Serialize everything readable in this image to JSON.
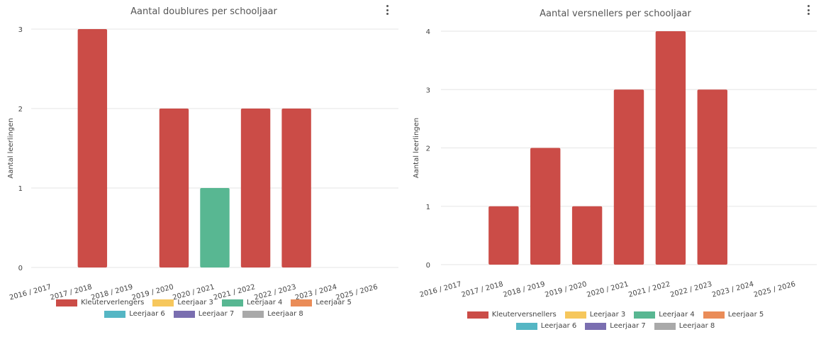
{
  "chart_data": [
    {
      "type": "bar",
      "title": "Aantal doublures per schooljaar",
      "ylabel": "Aantal leerlingen",
      "xlabel": "",
      "ylim": [
        0,
        3
      ],
      "yticks": [
        "0",
        "1",
        "2",
        "3"
      ],
      "categories": [
        "2016 / 2017",
        "2017 / 2018",
        "2018 / 2019",
        "2019 / 2020",
        "2020 / 2021",
        "2021 / 2022",
        "2022 / 2023",
        "2023 / 2024",
        "2025 / 2026"
      ],
      "series": [
        {
          "name": "Kleuterverlengers",
          "color": "#cb4c47",
          "values": [
            0,
            3,
            0,
            2,
            0,
            2,
            2,
            0,
            0
          ]
        },
        {
          "name": "Leerjaar 3",
          "color": "#f6c75c",
          "values": [
            0,
            0,
            0,
            0,
            0,
            0,
            0,
            0,
            0
          ]
        },
        {
          "name": "Leerjaar 4",
          "color": "#58b792",
          "values": [
            0,
            0,
            0,
            0,
            1,
            0,
            0,
            0,
            0
          ]
        },
        {
          "name": "Leerjaar 5",
          "color": "#ea8c58",
          "values": [
            0,
            0,
            0,
            0,
            0,
            0,
            0,
            0,
            0
          ]
        },
        {
          "name": "Leerjaar 6",
          "color": "#55b6c4",
          "values": [
            0,
            0,
            0,
            0,
            0,
            0,
            0,
            0,
            0
          ]
        },
        {
          "name": "Leerjaar 7",
          "color": "#7a6eb0",
          "values": [
            0,
            0,
            0,
            0,
            0,
            0,
            0,
            0,
            0
          ]
        },
        {
          "name": "Leerjaar 8",
          "color": "#a9a9a9",
          "values": [
            0,
            0,
            0,
            0,
            0,
            0,
            0,
            0,
            0
          ]
        }
      ],
      "grid": true,
      "legend": "bottom"
    },
    {
      "type": "bar",
      "title": "Aantal versnellers per schooljaar",
      "ylabel": "Aantal leerlingen",
      "xlabel": "",
      "ylim": [
        0,
        4
      ],
      "yticks": [
        "0",
        "1",
        "2",
        "3",
        "4"
      ],
      "categories": [
        "2016 / 2017",
        "2017 / 2018",
        "2018 / 2019",
        "2019 / 2020",
        "2020 / 2021",
        "2021 / 2022",
        "2022 / 2023",
        "2023 / 2024",
        "2025 / 2026"
      ],
      "series": [
        {
          "name": "Kleuterversnellers",
          "color": "#cb4c47",
          "values": [
            0,
            1,
            2,
            1,
            3,
            4,
            3,
            0,
            0
          ]
        },
        {
          "name": "Leerjaar 3",
          "color": "#f6c75c",
          "values": [
            0,
            0,
            0,
            0,
            0,
            0,
            0,
            0,
            0
          ]
        },
        {
          "name": "Leerjaar 4",
          "color": "#58b792",
          "values": [
            0,
            0,
            0,
            0,
            0,
            0,
            0,
            0,
            0
          ]
        },
        {
          "name": "Leerjaar 5",
          "color": "#ea8c58",
          "values": [
            0,
            0,
            0,
            0,
            0,
            0,
            0,
            0,
            0
          ]
        },
        {
          "name": "Leerjaar 6",
          "color": "#55b6c4",
          "values": [
            0,
            0,
            0,
            0,
            0,
            0,
            0,
            0,
            0
          ]
        },
        {
          "name": "Leerjaar 7",
          "color": "#7a6eb0",
          "values": [
            0,
            0,
            0,
            0,
            0,
            0,
            0,
            0,
            0
          ]
        },
        {
          "name": "Leerjaar 8",
          "color": "#a9a9a9",
          "values": [
            0,
            0,
            0,
            0,
            0,
            0,
            0,
            0,
            0
          ]
        }
      ],
      "grid": true,
      "legend": "bottom"
    }
  ],
  "menu_icon": "more-vertical-icon"
}
